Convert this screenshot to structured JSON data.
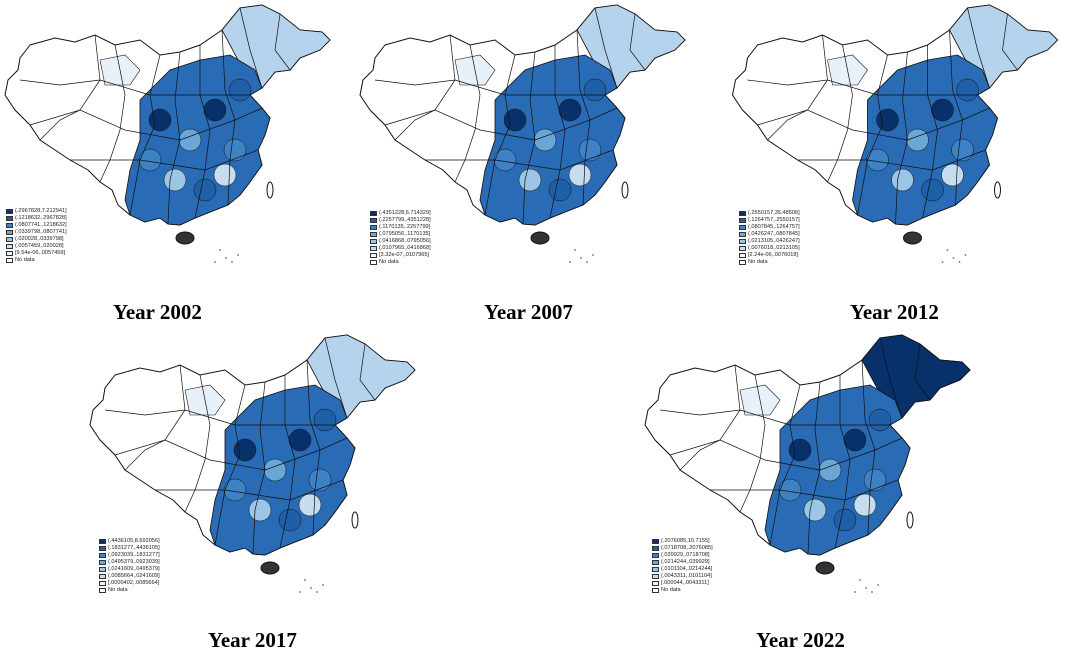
{
  "panels": [
    {
      "id": "p2002",
      "caption": "Year 2002",
      "legend": [
        "(.2967828,7.212941]",
        "(.1218632,.2967828]",
        "(.0807741,.1218632]",
        "(.0339798,.0807741]",
        "(.020028,.0339798]",
        "(.0057459,.020028]",
        "[9.54e-06,.0057459]",
        "No data"
      ]
    },
    {
      "id": "p2007",
      "caption": "Year 2007",
      "legend": [
        "(.4351228,6.714329]",
        "(.2257799,.4351228]",
        "(.1170135,.2257799]",
        "(.0795056,.1170135]",
        "(.0416868,.0795056]",
        "(.0107965,.0416868]",
        "[3.32e-07,.0107965]",
        "No data"
      ]
    },
    {
      "id": "p2012",
      "caption": "Year 2012",
      "legend": [
        "(.2550157,35.48506]",
        "(.1264757,.2550157]",
        "(.0807845,.1264757]",
        "(.0426247,.0807845]",
        "(.0213105,.0426247]",
        "(.0076018,.0213105]",
        "[2.24e-06,.0076018]",
        "No data"
      ]
    },
    {
      "id": "p2017",
      "caption": "Year 2017",
      "legend": [
        "(.4436105,8.692056]",
        "(.1831277,.4436105]",
        "(.0923039,.1831277]",
        "(.0495379,.0923039]",
        "(.0241609,.0495379]",
        "(.0085664,.0241609]",
        "[.0000402,.0085664]",
        "No data"
      ]
    },
    {
      "id": "p2022",
      "caption": "Year 2022",
      "legend": [
        "(.2076085,10.7155]",
        "(.0718708,.2076085]",
        "(.039929,.0718708]",
        "(.0214244,.039929]",
        "(.0101104,.0214244]",
        "(.0043311,.0101104]",
        "[.000044,.0043311]",
        "No data"
      ]
    }
  ],
  "legend_colors": [
    "#08306b",
    "#1f5fa8",
    "#3c82c4",
    "#6aa6d6",
    "#9cc6e6",
    "#c7ddef",
    "#eaf2fa",
    "#ffffff"
  ],
  "map_colors": {
    "outline": "#111111",
    "empty": "#ffffff",
    "east_fill": "#2a6bb5",
    "light_fill": "#b5d3ec",
    "pale_fill": "#e8f1fa"
  }
}
